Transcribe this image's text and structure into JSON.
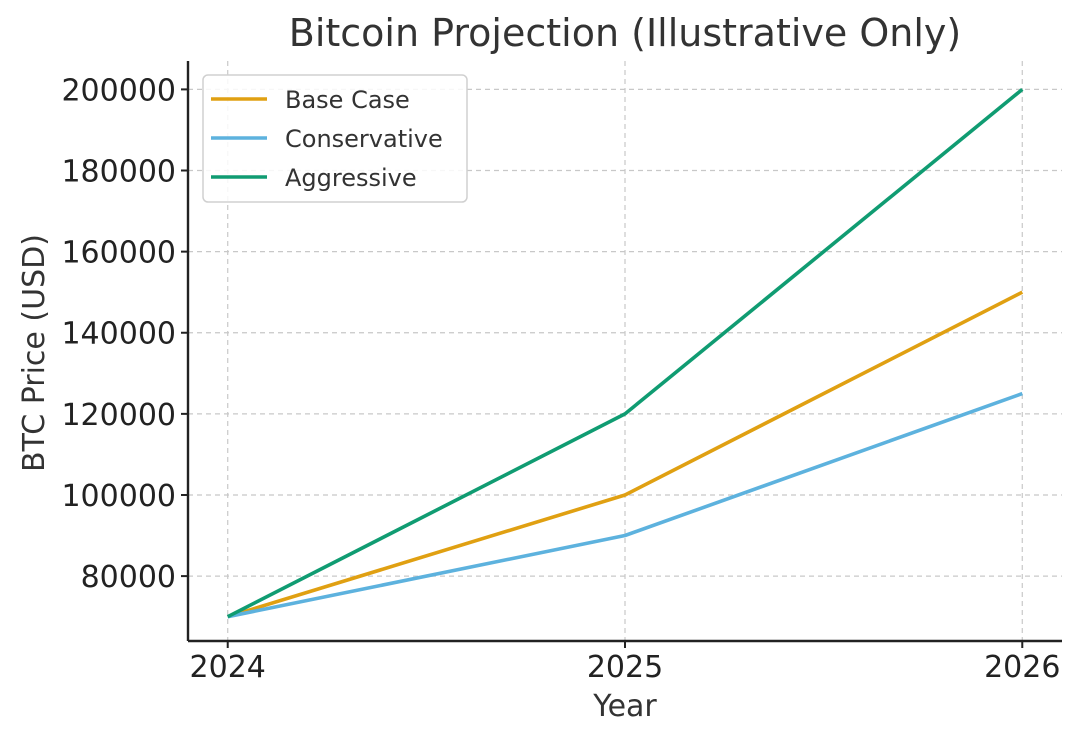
{
  "chart_data": {
    "type": "line",
    "title": "Bitcoin Projection (Illustrative Only)",
    "xlabel": "Year",
    "ylabel": "BTC Price (USD)",
    "x": [
      2024,
      2025,
      2026
    ],
    "x_tick_labels": [
      "2024",
      "2025",
      "2026"
    ],
    "xlim": [
      2023.9,
      2026.1
    ],
    "ylim": [
      64000,
      207000
    ],
    "y_ticks": [
      80000,
      100000,
      120000,
      140000,
      160000,
      180000,
      200000
    ],
    "y_tick_labels": [
      "80000",
      "100000",
      "120000",
      "140000",
      "160000",
      "180000",
      "200000"
    ],
    "grid": true,
    "legend_position": "top-left",
    "series": [
      {
        "name": "Base Case",
        "color": "#E0A012",
        "values": [
          70000,
          100000,
          150000
        ]
      },
      {
        "name": "Conservative",
        "color": "#5DB2DE",
        "values": [
          70000,
          90000,
          125000
        ]
      },
      {
        "name": "Aggressive",
        "color": "#109C72",
        "values": [
          70000,
          120000,
          200000
        ]
      }
    ]
  }
}
